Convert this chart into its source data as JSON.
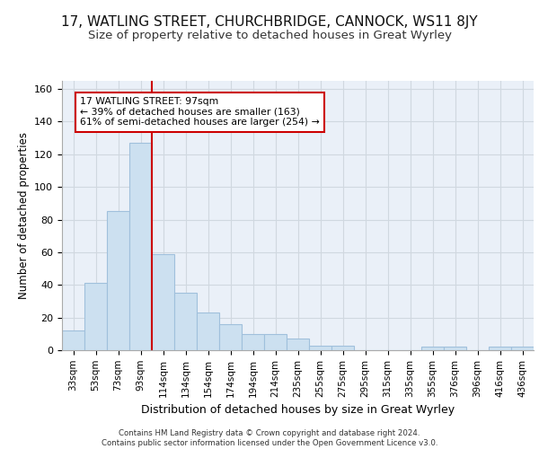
{
  "title1": "17, WATLING STREET, CHURCHBRIDGE, CANNOCK, WS11 8JY",
  "title2": "Size of property relative to detached houses in Great Wyrley",
  "xlabel": "Distribution of detached houses by size in Great Wyrley",
  "ylabel": "Number of detached properties",
  "categories": [
    "33sqm",
    "53sqm",
    "73sqm",
    "93sqm",
    "114sqm",
    "134sqm",
    "154sqm",
    "174sqm",
    "194sqm",
    "214sqm",
    "235sqm",
    "255sqm",
    "275sqm",
    "295sqm",
    "315sqm",
    "335sqm",
    "355sqm",
    "376sqm",
    "396sqm",
    "416sqm",
    "436sqm"
  ],
  "values": [
    12,
    41,
    85,
    127,
    59,
    35,
    23,
    16,
    10,
    10,
    7,
    3,
    3,
    0,
    0,
    0,
    2,
    2,
    0,
    2,
    2
  ],
  "bar_color": "#cce0f0",
  "bar_edge_color": "#a0c0dc",
  "grid_color": "#d0d8e0",
  "background_color": "#eaf0f8",
  "vline_color": "#cc0000",
  "vline_x_index": 3,
  "annotation_text": "17 WATLING STREET: 97sqm\n← 39% of detached houses are smaller (163)\n61% of semi-detached houses are larger (254) →",
  "annotation_box_color": "#ffffff",
  "annotation_border_color": "#cc0000",
  "footer_text": "Contains HM Land Registry data © Crown copyright and database right 2024.\nContains public sector information licensed under the Open Government Licence v3.0.",
  "ylim": [
    0,
    165
  ],
  "yticks": [
    0,
    20,
    40,
    60,
    80,
    100,
    120,
    140,
    160
  ],
  "title1_fontsize": 11,
  "title2_fontsize": 9.5,
  "xlabel_fontsize": 9,
  "ylabel_fontsize": 8.5
}
